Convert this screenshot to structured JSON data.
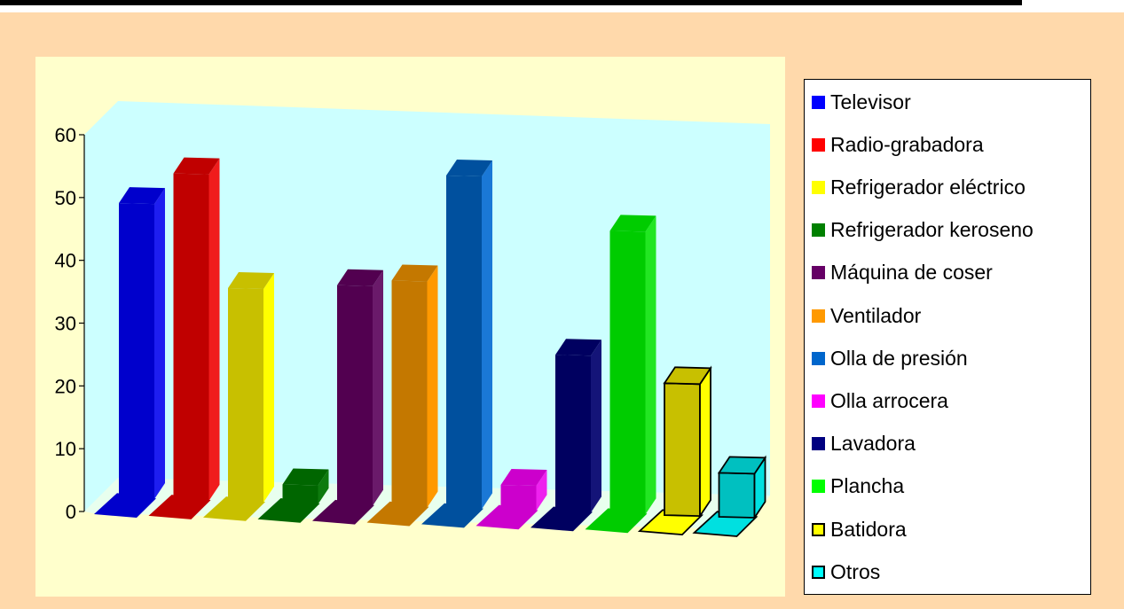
{
  "chart_data": {
    "type": "bar",
    "style": "3d-column",
    "title": "",
    "xlabel": "",
    "ylabel": "",
    "ylim": [
      0,
      60
    ],
    "yticks": [
      "0",
      "10",
      "20",
      "30",
      "40",
      "50",
      "60"
    ],
    "categories": [
      "Televisor",
      "Radio-grabadora",
      "Refrigerador eléctrico",
      "Refrigerador keroseno",
      "Máquina de coser",
      "Ventilador",
      "Olla de presión",
      "Olla arrocera",
      "Lavadora",
      "Plancha",
      "Batidora",
      "Otros"
    ],
    "values": [
      47,
      52,
      34,
      3,
      35,
      36,
      53,
      4,
      25,
      45,
      21,
      7
    ],
    "colors": [
      "#0000cc",
      "#c00000",
      "#c8c000",
      "#006600",
      "#520050",
      "#c47800",
      "#00509e",
      "#cc00cc",
      "#000060",
      "#00cc00",
      "#c8c000",
      "#00c0c0"
    ],
    "side_colors": [
      "#1e1ef0",
      "#f01c1c",
      "#ffff00",
      "#0e7a0e",
      "#6a1a6a",
      "#ff9900",
      "#1a78d6",
      "#ee22ee",
      "#141478",
      "#22e622",
      "#ffff00",
      "#00e0e0"
    ],
    "outlined": [
      false,
      false,
      false,
      false,
      false,
      false,
      false,
      false,
      false,
      false,
      true,
      true
    ],
    "legend_position": "right",
    "grid": false,
    "colors_meta": {
      "background": "#ffd9ab",
      "plot_area": "#ffffcc",
      "back_wall": "#ccffff"
    }
  },
  "legend": {
    "items": [
      {
        "label": "Televisor",
        "color": "#0000ff",
        "outlined": false
      },
      {
        "label": "Radio-grabadora",
        "color": "#ff0000",
        "outlined": false
      },
      {
        "label": "Refrigerador eléctrico",
        "color": "#ffff00",
        "outlined": false
      },
      {
        "label": "Refrigerador keroseno",
        "color": "#008000",
        "outlined": false
      },
      {
        "label": "Máquina de coser",
        "color": "#660066",
        "outlined": false
      },
      {
        "label": "Ventilador",
        "color": "#ff9900",
        "outlined": false
      },
      {
        "label": "Olla de presión",
        "color": "#0066cc",
        "outlined": false
      },
      {
        "label": "Olla arrocera",
        "color": "#ff00ff",
        "outlined": false
      },
      {
        "label": "Lavadora",
        "color": "#000080",
        "outlined": false
      },
      {
        "label": "Plancha",
        "color": "#00ff00",
        "outlined": false
      },
      {
        "label": "Batidora",
        "color": "#ffff00",
        "outlined": true
      },
      {
        "label": "Otros",
        "color": "#00ffff",
        "outlined": true
      }
    ]
  }
}
